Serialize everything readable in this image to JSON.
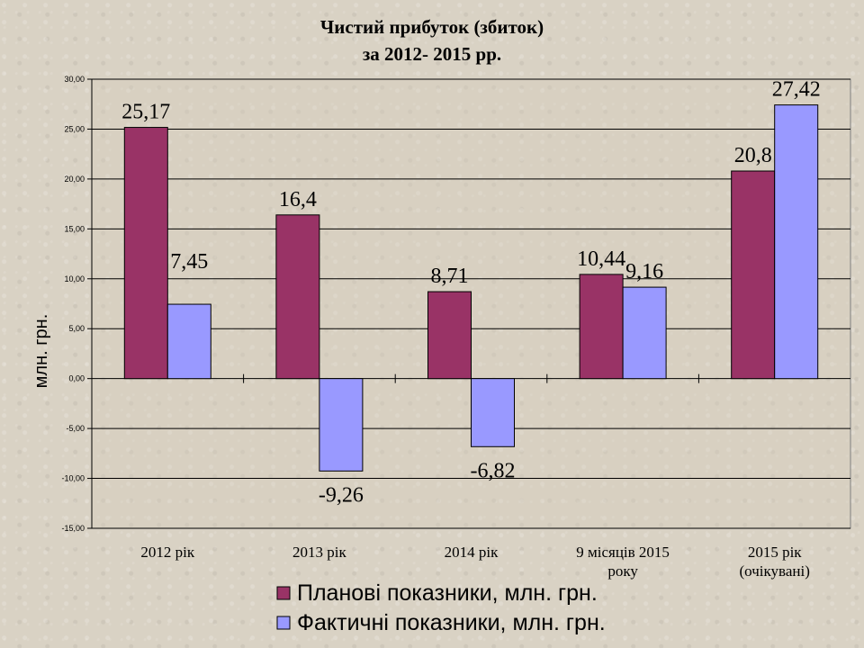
{
  "chart_data": {
    "type": "bar",
    "title": "Чистий прибуток (збиток)",
    "subtitle": "за 2012- 2015 рр.",
    "ylabel": "млн. грн.",
    "xlabel": "",
    "ylim": [
      -15,
      30
    ],
    "ytick_step": 5,
    "ytick_labels": [
      "30,00",
      "25,00",
      "20,00",
      "15,00",
      "10,00",
      "5,00",
      "0,00",
      "-5,00",
      "-10,00",
      "-15,00"
    ],
    "grid": true,
    "legend_position": "bottom",
    "categories": [
      [
        "2012 рік"
      ],
      [
        "2013 рік"
      ],
      [
        "2014 рік"
      ],
      [
        "9 місяців 2015",
        "року"
      ],
      [
        "2015 рік",
        "(очікувані)"
      ]
    ],
    "series": [
      {
        "name": "Планові показники, млн. грн.",
        "color": "#993366",
        "values": [
          25.17,
          16.4,
          8.71,
          10.44,
          20.8
        ],
        "labels": [
          "25,17",
          "16,4",
          "8,71",
          "10,44",
          "20,8"
        ]
      },
      {
        "name": "Фактичні показники, млн. грн.",
        "color": "#9999ff",
        "values": [
          7.45,
          -9.26,
          -6.82,
          9.16,
          27.42
        ],
        "labels": [
          "7,45",
          "-9,26",
          "-6,82",
          "9,16",
          "27,42"
        ]
      }
    ]
  }
}
